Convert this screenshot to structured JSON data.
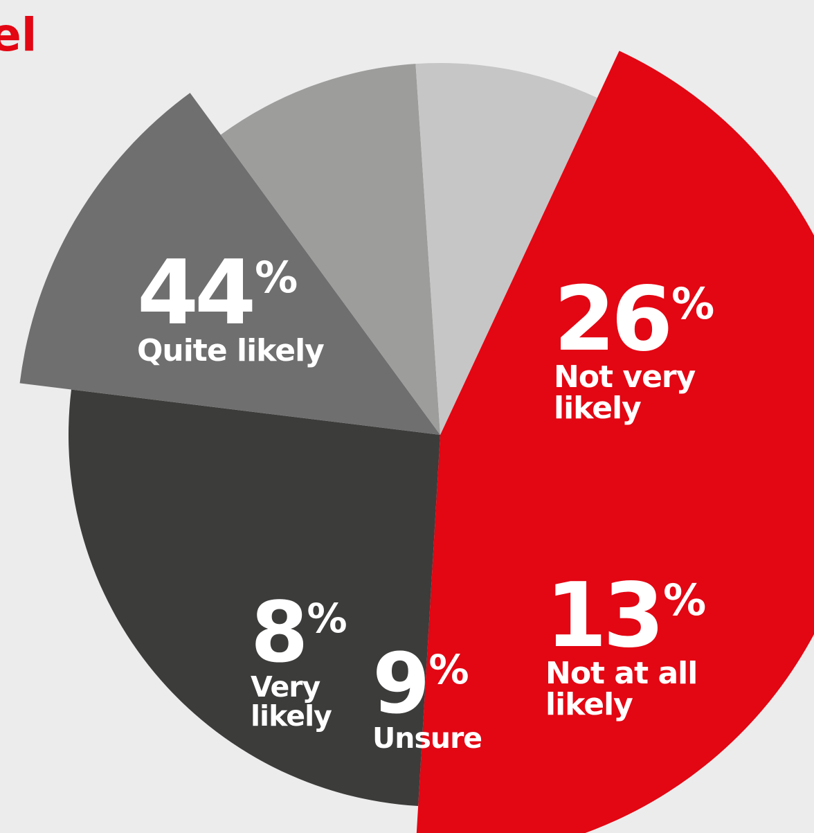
{
  "page": {
    "background": "#ececec",
    "title_fragment": "el"
  },
  "chart_data": {
    "type": "pie",
    "title": "",
    "start_angle_deg": 25,
    "slices": [
      {
        "key": "quite",
        "label": "Quite likely",
        "pct_value": "44",
        "pct_sign": "%",
        "value": 44,
        "color": "#e30613",
        "exploded": true
      },
      {
        "key": "notvery",
        "label": "Not very likely",
        "pct_value": "26",
        "pct_sign": "%",
        "value": 26,
        "color": "#3c3c3b",
        "exploded": false
      },
      {
        "key": "notatall",
        "label": "Not at all likely",
        "pct_value": "13",
        "pct_sign": "%",
        "value": 13,
        "color": "#6f6f6f",
        "exploded": true
      },
      {
        "key": "unsure",
        "label": "Unsure",
        "pct_value": "9",
        "pct_sign": "%",
        "value": 9,
        "color": "#9d9d9c",
        "exploded": false
      },
      {
        "key": "very",
        "label": "Very likely",
        "pct_value": "8",
        "pct_sign": "%",
        "value": 8,
        "color": "#c6c6c6",
        "exploded": false
      }
    ]
  }
}
